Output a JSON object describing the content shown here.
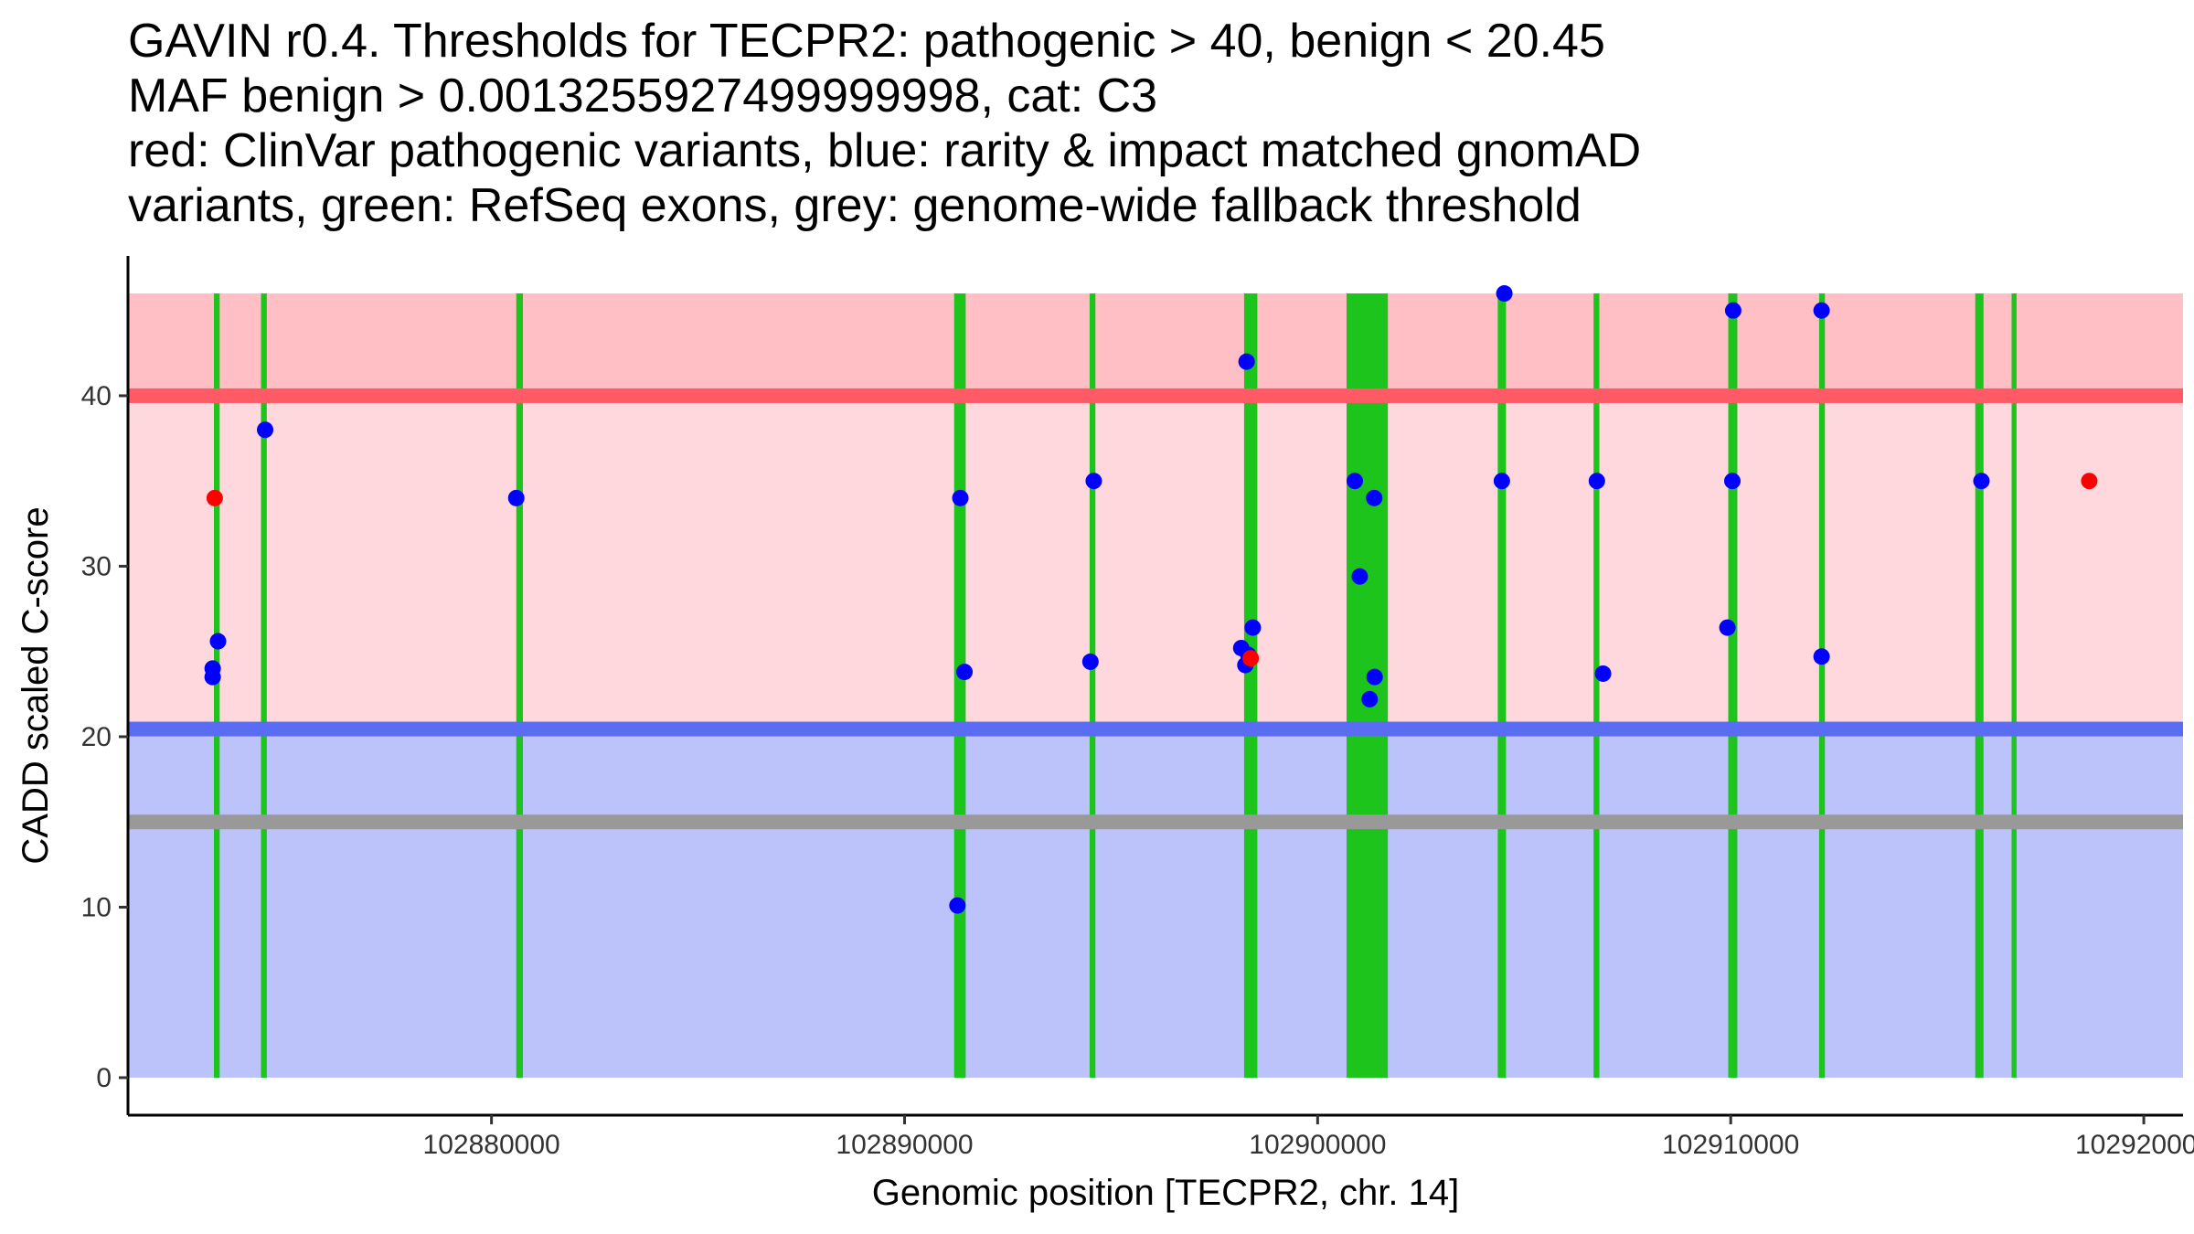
{
  "chart_data": {
    "type": "scatter",
    "title_lines": [
      "GAVIN r0.4. Thresholds for TECPR2: pathogenic > 40, benign < 20.45",
      "MAF benign > 0.0013255927499999998, cat: C3",
      "red: ClinVar pathogenic variants, blue: rarity & impact matched gnomAD",
      "variants, green: RefSeq exons, grey: genome-wide fallback threshold"
    ],
    "xlabel": "Genomic position [TECPR2, chr. 14]",
    "ylabel": "CADD scaled C-score",
    "xlim": [
      102871200,
      102920950
    ],
    "ylim": [
      -2.2,
      48.2
    ],
    "x_ticks": [
      102880000,
      102890000,
      102900000,
      102910000,
      102920000
    ],
    "x_tick_labels": [
      "102880000",
      "102890000",
      "102900000",
      "102910000",
      "102920000"
    ],
    "y_ticks": [
      0,
      10,
      20,
      30,
      40
    ],
    "y_tick_labels": [
      "0",
      "10",
      "20",
      "30",
      "40"
    ],
    "thresholds": {
      "pathogenic": 40,
      "benign": 20.45,
      "fallback": 15,
      "max": 46
    },
    "colors": {
      "pathogenic_band": "#ffd8dd",
      "pathogenic_top_band": "#ffbfc5",
      "benign_band": "#bcc2fa",
      "pathogenic_line": "#ff5a66",
      "benign_line": "#5a6cf2",
      "fallback_line": "#999999",
      "exon": "#1cc41c",
      "clinvar": "#ff0000",
      "gnomad": "#0000ff"
    },
    "exons": [
      {
        "start": 102873280,
        "end": 102873420
      },
      {
        "start": 102874420,
        "end": 102874560
      },
      {
        "start": 102880600,
        "end": 102880760
      },
      {
        "start": 102891200,
        "end": 102891480
      },
      {
        "start": 102894480,
        "end": 102894620
      },
      {
        "start": 102898220,
        "end": 102898540
      },
      {
        "start": 102900700,
        "end": 102901700
      },
      {
        "start": 102904360,
        "end": 102904560
      },
      {
        "start": 102906680,
        "end": 102906820
      },
      {
        "start": 102909940,
        "end": 102910160
      },
      {
        "start": 102912140,
        "end": 102912280
      },
      {
        "start": 102915920,
        "end": 102916120
      },
      {
        "start": 102916800,
        "end": 102916920
      }
    ],
    "series": [
      {
        "name": "ClinVar pathogenic variants",
        "color": "#ff0000",
        "points": [
          {
            "x": 102873300,
            "y": 34
          },
          {
            "x": 102898380,
            "y": 24.6
          },
          {
            "x": 102918680,
            "y": 35
          }
        ]
      },
      {
        "name": "rarity & impact matched gnomAD variants",
        "color": "#0000ff",
        "points": [
          {
            "x": 102873250,
            "y": 24
          },
          {
            "x": 102873250,
            "y": 23.5
          },
          {
            "x": 102873380,
            "y": 25.6
          },
          {
            "x": 102874520,
            "y": 38
          },
          {
            "x": 102880600,
            "y": 34
          },
          {
            "x": 102891350,
            "y": 34
          },
          {
            "x": 102891280,
            "y": 10.1
          },
          {
            "x": 102891450,
            "y": 23.8
          },
          {
            "x": 102894580,
            "y": 35
          },
          {
            "x": 102894500,
            "y": 24.4
          },
          {
            "x": 102898280,
            "y": 42
          },
          {
            "x": 102898150,
            "y": 25.2
          },
          {
            "x": 102898250,
            "y": 24.2
          },
          {
            "x": 102898320,
            "y": 24.8
          },
          {
            "x": 102898430,
            "y": 26.4
          },
          {
            "x": 102900900,
            "y": 35
          },
          {
            "x": 102901370,
            "y": 34
          },
          {
            "x": 102901020,
            "y": 29.4
          },
          {
            "x": 102901380,
            "y": 23.5
          },
          {
            "x": 102901260,
            "y": 22.2
          },
          {
            "x": 102904520,
            "y": 46
          },
          {
            "x": 102904460,
            "y": 35
          },
          {
            "x": 102906760,
            "y": 35
          },
          {
            "x": 102906910,
            "y": 23.7
          },
          {
            "x": 102910060,
            "y": 45
          },
          {
            "x": 102910040,
            "y": 35
          },
          {
            "x": 102909920,
            "y": 26.4
          },
          {
            "x": 102912200,
            "y": 45
          },
          {
            "x": 102912200,
            "y": 24.7
          },
          {
            "x": 102916070,
            "y": 35
          }
        ]
      }
    ]
  }
}
